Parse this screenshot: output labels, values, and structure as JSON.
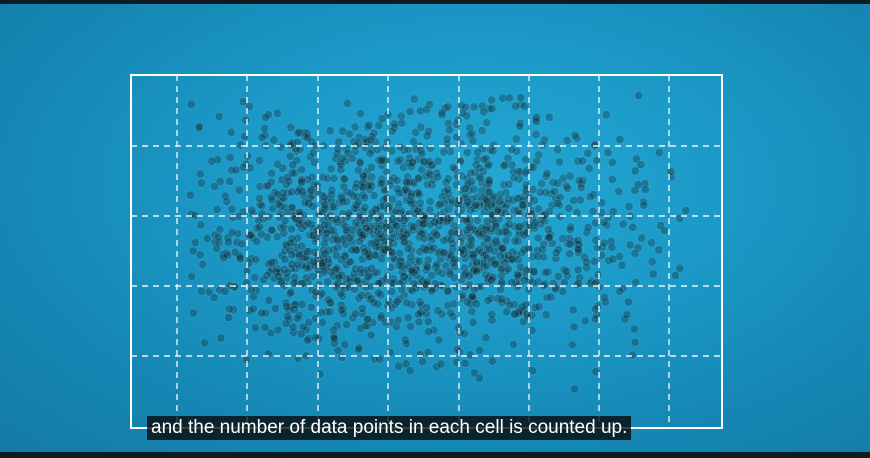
{
  "video": {
    "caption": "and the number of data points in each cell is counted up."
  },
  "colors": {
    "background": "#1c9ac8",
    "grid_lines": "#ffffff",
    "points": "#0e2733",
    "caption_background": "#080808",
    "caption_text": "#ffffff"
  }
}
